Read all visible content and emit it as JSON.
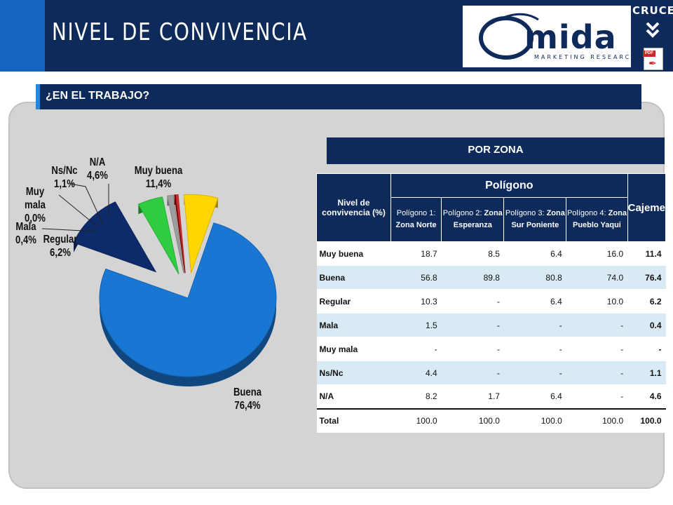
{
  "header": {
    "title": "NIVEL DE CONVIVENCIA",
    "logo_main": "mida",
    "logo_sub": "MARKETING RESEARCH",
    "cruces_label": "CRUCES",
    "pdf_label": "PDF"
  },
  "question": "¿EN EL TRABAJO?",
  "zona_label": "POR ZONA",
  "colors": {
    "header_bg": "#0d2a5a",
    "accent_blue": "#1565c0",
    "row_alt": "#d8eaf3"
  },
  "chart_data": {
    "type": "pie",
    "slices": [
      {
        "label": "Buena",
        "value": 76.4,
        "display": "76,4%",
        "color": "#1976d2"
      },
      {
        "label": "Muy buena",
        "value": 11.4,
        "display": "11,4%",
        "color": "#0d2a6b"
      },
      {
        "label": "N/A",
        "value": 4.6,
        "display": "4,6%",
        "color": "#2ecc40"
      },
      {
        "label": "Ns/Nc",
        "value": 1.1,
        "display": "1,1%",
        "color": "#9e9e9e"
      },
      {
        "label": "Muy mala",
        "value": 0.0,
        "display": "0,0%",
        "color": "#8b0000"
      },
      {
        "label": "Mala",
        "value": 0.4,
        "display": "0,4%",
        "color": "#d32f2f"
      },
      {
        "label": "Regular",
        "value": 6.2,
        "display": "6,2%",
        "color": "#ffd600"
      }
    ]
  },
  "table": {
    "header_nivel": "Nivel de convivencia (%)",
    "header_poligono": "Polígono",
    "header_cajeme": "Cajeme",
    "subheaders": [
      {
        "pre": "Polígono 1: ",
        "bold": "Zona Norte"
      },
      {
        "pre": "Polígono 2: ",
        "bold": "Zona Esperanza"
      },
      {
        "pre": "Polígono 3: ",
        "bold": "Zona Sur Poniente"
      },
      {
        "pre": "Polígono 4: ",
        "bold": "Zona Pueblo Yaqui"
      }
    ],
    "rows": [
      {
        "label": "Muy buena",
        "p1": "18.7",
        "p2": "8.5",
        "p3": "6.4",
        "p4": "16.0",
        "cajeme": "11.4"
      },
      {
        "label": "Buena",
        "p1": "56.8",
        "p2": "89.8",
        "p3": "80.8",
        "p4": "74.0",
        "cajeme": "76.4"
      },
      {
        "label": "Regular",
        "p1": "10.3",
        "p2": "-",
        "p3": "6.4",
        "p4": "10.0",
        "cajeme": "6.2"
      },
      {
        "label": "Mala",
        "p1": "1.5",
        "p2": "-",
        "p3": "-",
        "p4": "-",
        "cajeme": "0.4"
      },
      {
        "label": "Muy mala",
        "p1": "-",
        "p2": "-",
        "p3": "-",
        "p4": "-",
        "cajeme": "-"
      },
      {
        "label": "Ns/Nc",
        "p1": "4.4",
        "p2": "-",
        "p3": "-",
        "p4": "-",
        "cajeme": "1.1"
      },
      {
        "label": "N/A",
        "p1": "8.2",
        "p2": "1.7",
        "p3": "6.4",
        "p4": "-",
        "cajeme": "4.6"
      }
    ],
    "total": {
      "label": "Total",
      "p1": "100.0",
      "p2": "100.0",
      "p3": "100.0",
      "p4": "100.0",
      "cajeme": "100.0"
    }
  }
}
